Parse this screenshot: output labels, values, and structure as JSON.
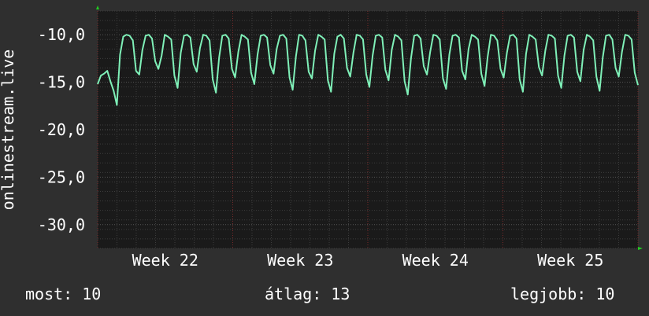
{
  "chart_data": {
    "type": "line",
    "ylabel": "onlinestream.live",
    "ylim": [
      -32.5,
      -7.5
    ],
    "yticks": [
      {
        "value": -10,
        "label": "-10,0"
      },
      {
        "value": -15,
        "label": "-15,0"
      },
      {
        "value": -20,
        "label": "-20,0"
      },
      {
        "value": -25,
        "label": "-25,0"
      },
      {
        "value": -30,
        "label": "-30,0"
      }
    ],
    "xlim": [
      0,
      28
    ],
    "xticks": [
      {
        "value": 3.5,
        "label": "Week 22"
      },
      {
        "value": 10.5,
        "label": "Week 23"
      },
      {
        "value": 17.5,
        "label": "Week 24"
      },
      {
        "value": 24.5,
        "label": "Week 25"
      }
    ],
    "grid": true,
    "colors": {
      "background": "#2f2f2f",
      "plot": "#1a1a1a",
      "line": "#7ff0b8",
      "grid": "#3d3d3d",
      "week_grid": "#7a2a2a",
      "arrow": "#22cc22"
    },
    "series": [
      {
        "values": [
          -15.2,
          -14.3,
          -14.1,
          -13.8,
          -14.9,
          -15.9,
          -17.4,
          -12.1,
          -10.2,
          -10.0,
          -10.1,
          -10.6,
          -13.8,
          -14.2,
          -11.6,
          -10.1,
          -10.0,
          -10.4,
          -12.8,
          -13.6,
          -12.2,
          -10.0,
          -10.2,
          -10.5,
          -14.3,
          -15.6,
          -11.9,
          -10.1,
          -10.0,
          -10.3,
          -13.1,
          -13.9,
          -11.4,
          -10.0,
          -10.1,
          -10.6,
          -14.7,
          -16.1,
          -12.4,
          -10.1,
          -10.0,
          -10.4,
          -13.6,
          -14.5,
          -11.8,
          -10.0,
          -10.2,
          -10.5,
          -14.0,
          -15.2,
          -12.1,
          -10.1,
          -10.0,
          -10.3,
          -13.2,
          -14.1,
          -11.5,
          -10.1,
          -10.0,
          -10.4,
          -14.5,
          -15.8,
          -12.3,
          -10.0,
          -10.1,
          -10.6,
          -13.9,
          -14.6,
          -11.7,
          -10.0,
          -10.2,
          -10.5,
          -14.8,
          -16.0,
          -12.0,
          -10.2,
          -10.0,
          -10.4,
          -13.5,
          -14.4,
          -11.9,
          -10.0,
          -10.1,
          -10.5,
          -14.2,
          -15.5,
          -12.2,
          -10.1,
          -10.0,
          -10.3,
          -13.7,
          -14.8,
          -11.6,
          -10.0,
          -10.2,
          -10.6,
          -14.9,
          -16.3,
          -12.5,
          -10.1,
          -10.0,
          -10.4,
          -13.3,
          -14.2,
          -11.8,
          -10.0,
          -10.1,
          -10.5,
          -14.6,
          -15.7,
          -12.1,
          -10.1,
          -10.0,
          -10.3,
          -13.8,
          -14.7,
          -11.5,
          -10.0,
          -10.2,
          -10.5,
          -14.1,
          -15.4,
          -12.3,
          -10.0,
          -10.1,
          -10.6,
          -13.6,
          -14.5,
          -11.9,
          -10.1,
          -10.0,
          -10.4,
          -14.7,
          -16.0,
          -12.0,
          -10.0,
          -10.2,
          -10.5,
          -13.4,
          -14.3,
          -11.7,
          -10.0,
          -10.1,
          -10.4,
          -14.3,
          -15.6,
          -12.2,
          -10.1,
          -10.0,
          -10.3,
          -13.9,
          -14.9,
          -11.6,
          -10.0,
          -10.2,
          -10.6,
          -14.4,
          -15.9,
          -12.4,
          -10.1,
          -10.0,
          -10.5,
          -13.5,
          -14.4,
          -11.8,
          -10.0,
          -10.1,
          -10.5,
          -14.0,
          -15.3
        ]
      }
    ]
  },
  "footer": {
    "current": "most: 10",
    "average": "átlag: 13",
    "best": "legjobb: 10"
  }
}
